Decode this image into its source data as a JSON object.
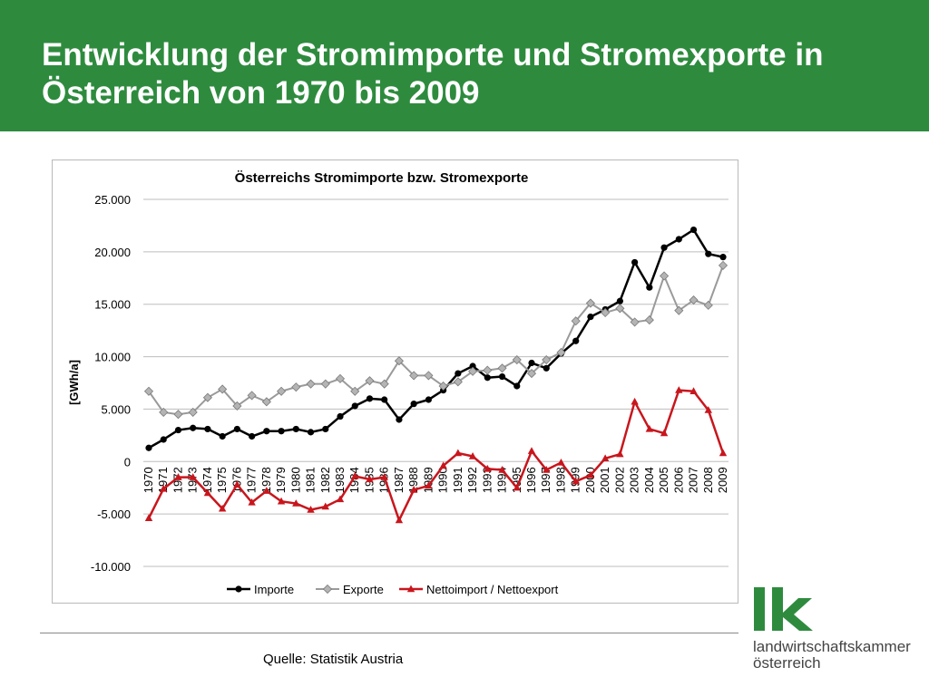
{
  "header": {
    "title": "Entwicklung der Stromimporte und Stromexporte in Österreich von 1970 bis 2009",
    "background": "#2e8b3e"
  },
  "source": "Quelle: Statistik Austria",
  "logo": {
    "line1": "landwirtschaftskammer",
    "line2": "österreich",
    "color": "#2e8b3e"
  },
  "chart_data": {
    "type": "line",
    "title": "Österreichs Stromimporte bzw. Stromexporte",
    "ylabel": "[GWh/a]",
    "xlabel": "",
    "ylim": [
      -10000,
      25000
    ],
    "yticks": [
      25000,
      20000,
      15000,
      10000,
      5000,
      0,
      -5000,
      -10000
    ],
    "ytick_labels": [
      "25.000",
      "20.000",
      "15.000",
      "10.000",
      "5.000",
      "0",
      "-5.000",
      "-10.000"
    ],
    "grid": "horizontal",
    "legend": "bottom",
    "categories": [
      "1970",
      "1971",
      "1972",
      "1973",
      "1974",
      "1975",
      "1976",
      "1977",
      "1978",
      "1979",
      "1980",
      "1981",
      "1982",
      "1983",
      "1984",
      "1985",
      "1986",
      "1987",
      "1988",
      "1989",
      "1990",
      "1991",
      "1992",
      "1993",
      "1994",
      "1995",
      "1996",
      "1997",
      "1998",
      "1999",
      "2000",
      "2001",
      "2002",
      "2003",
      "2004",
      "2005",
      "2006",
      "2007",
      "2008",
      "2009"
    ],
    "series": [
      {
        "name": "Importe",
        "color": "#000000",
        "marker": "circle",
        "values": [
          1300,
          2100,
          3000,
          3200,
          3100,
          2400,
          3100,
          2400,
          2900,
          2900,
          3100,
          2800,
          3100,
          4300,
          5300,
          6000,
          5900,
          4000,
          5500,
          5900,
          6800,
          8400,
          9100,
          8000,
          8100,
          7200,
          9400,
          8900,
          10300,
          11500,
          13800,
          14500,
          15300,
          19000,
          16600,
          20400,
          21200,
          22100,
          19800,
          19500
        ]
      },
      {
        "name": "Exporte",
        "color": "#9a9a9a",
        "marker": "diamond",
        "values": [
          6700,
          4700,
          4500,
          4700,
          6100,
          6900,
          5300,
          6300,
          5700,
          6700,
          7100,
          7400,
          7400,
          7900,
          6700,
          7700,
          7400,
          9600,
          8200,
          8200,
          7200,
          7600,
          8600,
          8700,
          8900,
          9700,
          8400,
          9700,
          10400,
          13400,
          15100,
          14200,
          14600,
          13300,
          13500,
          17700,
          14400,
          15400,
          14900,
          18700
        ]
      },
      {
        "name": "Nettoimport / Nettoexport",
        "color": "#c8161d",
        "marker": "triangle",
        "values": [
          -5400,
          -2600,
          -1500,
          -1500,
          -3000,
          -4500,
          -2200,
          -3900,
          -2800,
          -3800,
          -4000,
          -4600,
          -4300,
          -3600,
          -1400,
          -1700,
          -1500,
          -5600,
          -2700,
          -2300,
          -400,
          800,
          500,
          -700,
          -800,
          -2500,
          1000,
          -800,
          -100,
          -1900,
          -1300,
          300,
          700,
          5700,
          3100,
          2700,
          6800,
          6700,
          4900,
          800
        ]
      }
    ]
  }
}
